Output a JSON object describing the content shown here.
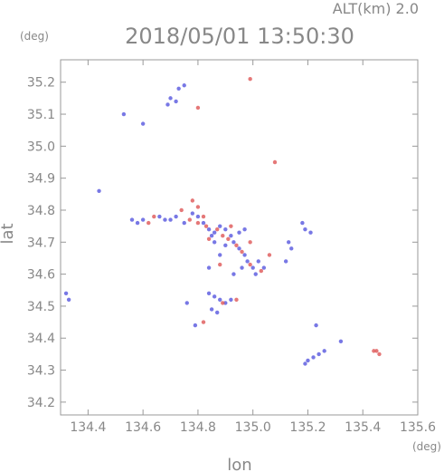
{
  "header": {
    "altitude_label": "ALT(km)  2.0",
    "timestamp": "2018/05/01 13:50:30"
  },
  "chart_data": {
    "type": "scatter",
    "xlabel": "lon",
    "ylabel": "lat",
    "x_unit": "(deg)",
    "y_unit": "(deg)",
    "xlim": [
      134.3,
      135.6
    ],
    "ylim": [
      34.16,
      35.27
    ],
    "xticks": [
      134.4,
      134.6,
      134.8,
      135.0,
      135.2,
      135.4,
      135.6
    ],
    "xtick_labels": [
      "134.4",
      "134.6",
      "134.8",
      "135.0",
      "135.2",
      "135.4",
      "135.6"
    ],
    "yticks": [
      34.2,
      34.3,
      34.4,
      34.5,
      34.6,
      34.7,
      34.8,
      34.9,
      35.0,
      35.1,
      35.2
    ],
    "ytick_labels": [
      "34.2",
      "34.3",
      "34.4",
      "34.5",
      "34.6",
      "34.7",
      "34.8",
      "34.9",
      "35.0",
      "35.1",
      "35.2"
    ],
    "grid": false,
    "colors": {
      "positive": "#e06060",
      "negative": "#6060e0",
      "axis": "#999999",
      "text": "#888888"
    },
    "series": [
      {
        "values": [
          [
            134.75,
            35.19
          ],
          [
            134.73,
            35.18
          ],
          [
            134.72,
            35.14
          ],
          [
            134.7,
            35.15
          ],
          [
            134.69,
            35.13
          ],
          [
            134.53,
            35.1
          ],
          [
            134.6,
            35.07
          ],
          [
            134.44,
            34.86
          ],
          [
            134.79,
            34.44
          ],
          [
            134.32,
            34.54
          ],
          [
            134.33,
            34.52
          ],
          [
            134.56,
            34.77
          ],
          [
            134.58,
            34.76
          ],
          [
            134.6,
            34.77
          ],
          [
            134.66,
            34.78
          ],
          [
            134.68,
            34.77
          ],
          [
            134.7,
            34.77
          ],
          [
            134.72,
            34.78
          ],
          [
            134.75,
            34.76
          ],
          [
            134.78,
            34.79
          ],
          [
            134.8,
            34.78
          ],
          [
            134.82,
            34.76
          ],
          [
            134.84,
            34.74
          ],
          [
            134.86,
            34.73
          ],
          [
            134.88,
            34.75
          ],
          [
            134.9,
            34.74
          ],
          [
            134.92,
            34.72
          ],
          [
            134.93,
            34.7
          ],
          [
            134.95,
            34.68
          ],
          [
            134.97,
            34.66
          ],
          [
            134.98,
            34.64
          ],
          [
            135.0,
            34.62
          ],
          [
            135.02,
            34.64
          ],
          [
            135.04,
            34.62
          ],
          [
            135.01,
            34.6
          ],
          [
            134.9,
            34.69
          ],
          [
            134.88,
            34.66
          ],
          [
            134.85,
            34.72
          ],
          [
            134.86,
            34.7
          ],
          [
            134.95,
            34.73
          ],
          [
            134.97,
            34.74
          ],
          [
            134.93,
            34.6
          ],
          [
            134.96,
            34.62
          ],
          [
            134.86,
            34.53
          ],
          [
            134.88,
            34.52
          ],
          [
            134.85,
            34.49
          ],
          [
            134.87,
            34.48
          ],
          [
            134.9,
            34.51
          ],
          [
            134.92,
            34.52
          ],
          [
            134.84,
            34.54
          ],
          [
            134.76,
            34.51
          ],
          [
            134.84,
            34.62
          ],
          [
            135.12,
            34.64
          ],
          [
            135.14,
            34.68
          ],
          [
            135.18,
            34.76
          ],
          [
            135.19,
            34.74
          ],
          [
            135.21,
            34.73
          ],
          [
            135.2,
            34.33
          ],
          [
            135.22,
            34.34
          ],
          [
            135.24,
            34.35
          ],
          [
            135.26,
            34.36
          ],
          [
            135.19,
            34.32
          ],
          [
            135.23,
            34.44
          ],
          [
            135.32,
            34.39
          ],
          [
            135.13,
            34.7
          ]
        ]
      },
      {
        "values": [
          [
            134.99,
            35.21
          ],
          [
            134.8,
            35.12
          ],
          [
            135.08,
            34.95
          ],
          [
            134.62,
            34.76
          ],
          [
            134.64,
            34.78
          ],
          [
            134.74,
            34.8
          ],
          [
            134.78,
            34.83
          ],
          [
            134.8,
            34.81
          ],
          [
            134.82,
            34.78
          ],
          [
            134.83,
            34.75
          ],
          [
            134.87,
            34.74
          ],
          [
            134.89,
            34.72
          ],
          [
            134.91,
            34.71
          ],
          [
            134.94,
            34.69
          ],
          [
            134.96,
            34.67
          ],
          [
            134.99,
            34.63
          ],
          [
            135.03,
            34.61
          ],
          [
            134.84,
            34.71
          ],
          [
            134.92,
            34.75
          ],
          [
            134.89,
            34.51
          ],
          [
            134.82,
            34.45
          ],
          [
            134.94,
            34.52
          ],
          [
            134.8,
            34.76
          ],
          [
            134.77,
            34.77
          ],
          [
            135.45,
            34.36
          ],
          [
            135.46,
            34.35
          ],
          [
            135.44,
            34.36
          ],
          [
            134.88,
            34.63
          ],
          [
            134.99,
            34.7
          ],
          [
            135.06,
            34.66
          ]
        ]
      }
    ]
  }
}
